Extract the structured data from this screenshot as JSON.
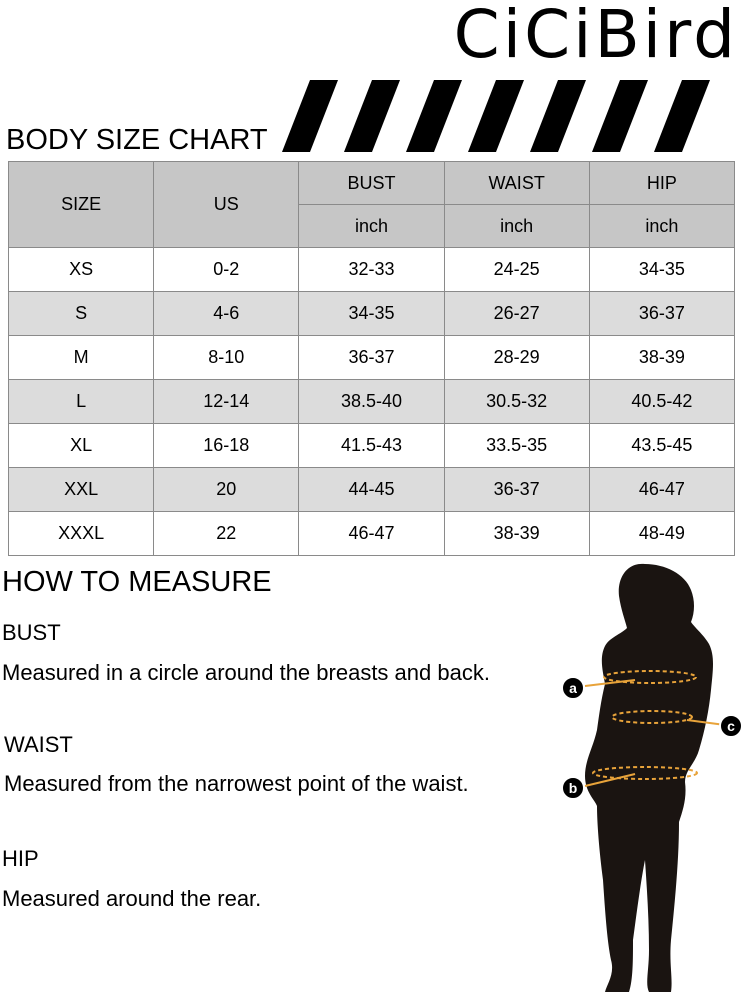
{
  "brand": "CiCiBird",
  "chart_title": "BODY SIZE CHART",
  "table": {
    "headers": [
      "SIZE",
      "US",
      "BUST",
      "WAIST",
      "HIP"
    ],
    "unit": "inch",
    "rows": [
      [
        "XS",
        "0-2",
        "32-33",
        "24-25",
        "34-35"
      ],
      [
        "S",
        "4-6",
        "34-35",
        "26-27",
        "36-37"
      ],
      [
        "M",
        "8-10",
        "36-37",
        "28-29",
        "38-39"
      ],
      [
        "L",
        "12-14",
        "38.5-40",
        "30.5-32",
        "40.5-42"
      ],
      [
        "XL",
        "16-18",
        "41.5-43",
        "33.5-35",
        "43.5-45"
      ],
      [
        "XXL",
        "20",
        "44-45",
        "36-37",
        "46-47"
      ],
      [
        "XXXL",
        "22",
        "46-47",
        "38-39",
        "48-49"
      ]
    ]
  },
  "measure": {
    "title": "HOW TO MEASURE",
    "bust": {
      "label": "BUST",
      "text": "Measured in a circle around the breasts and back."
    },
    "waist": {
      "label": "WAIST",
      "text": "Measured from the narrowest point of the waist."
    },
    "hip": {
      "label": "HIP",
      "text": "Measured around the rear."
    },
    "markers": [
      "a",
      "b",
      "c"
    ],
    "marker_color": "#e8a33a"
  }
}
